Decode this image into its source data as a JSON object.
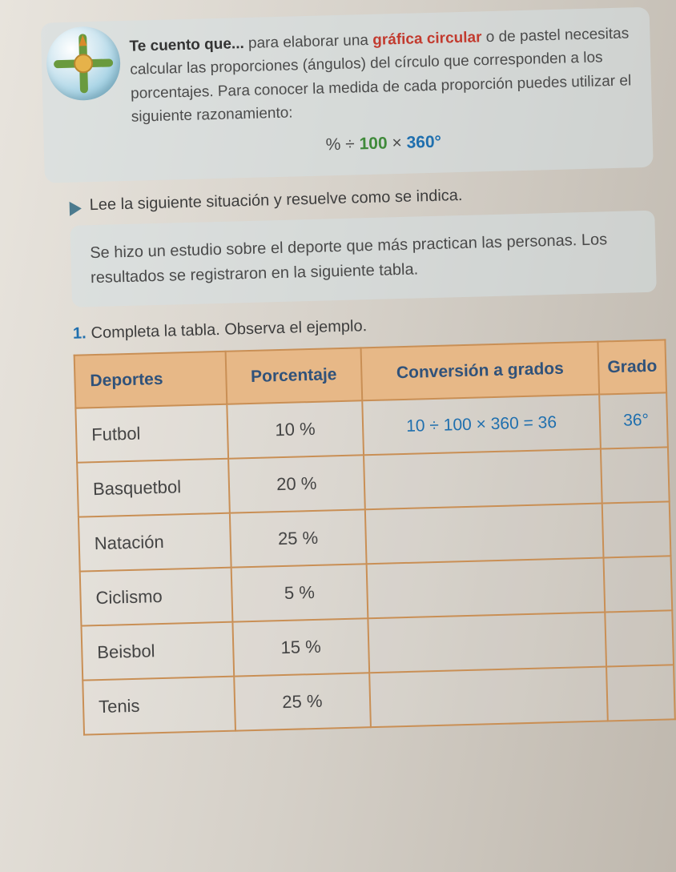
{
  "intro": {
    "lead_bold": "Te cuento que...",
    "t1": " para elaborar una ",
    "hl1": "gráfica circular",
    "t2": " o de pastel necesitas calcular las proporciones (ángulos) del círculo que corresponden a los porcentajes. Para conocer la medida de cada proporción puedes utilizar el siguiente razonamiento:",
    "formula_a": "% ÷ ",
    "formula_b": "100",
    "formula_c": " × ",
    "formula_d": "360°"
  },
  "lead": "Lee la siguiente situación y resuelve como se indica.",
  "situation": "Se hizo un estudio sobre el deporte que más practican las personas. Los resultados se registraron en la siguiente tabla.",
  "task_num": "1.",
  "task": "Completa la tabla. Observa el ejemplo.",
  "table": {
    "headers": [
      "Deportes",
      "Porcentaje",
      "Conversión a grados",
      "Grado"
    ],
    "rows": [
      {
        "sport": "Futbol",
        "pct": "10 %",
        "conv": "10 ÷ 100 × 360 = 36",
        "grad": "36°"
      },
      {
        "sport": "Basquetbol",
        "pct": "20 %",
        "conv": "",
        "grad": ""
      },
      {
        "sport": "Natación",
        "pct": "25 %",
        "conv": "",
        "grad": ""
      },
      {
        "sport": "Ciclismo",
        "pct": "5 %",
        "conv": "",
        "grad": ""
      },
      {
        "sport": "Beisbol",
        "pct": "15 %",
        "conv": "",
        "grad": ""
      },
      {
        "sport": "Tenis",
        "pct": "25 %",
        "conv": "",
        "grad": ""
      }
    ]
  },
  "colors": {
    "header_bg": "#e7b887",
    "border": "#c98f55",
    "blue": "#1f6fae",
    "red": "#c23a2e",
    "green": "#3f8a3a",
    "box_bg": "rgba(214,224,228,0.55)"
  }
}
